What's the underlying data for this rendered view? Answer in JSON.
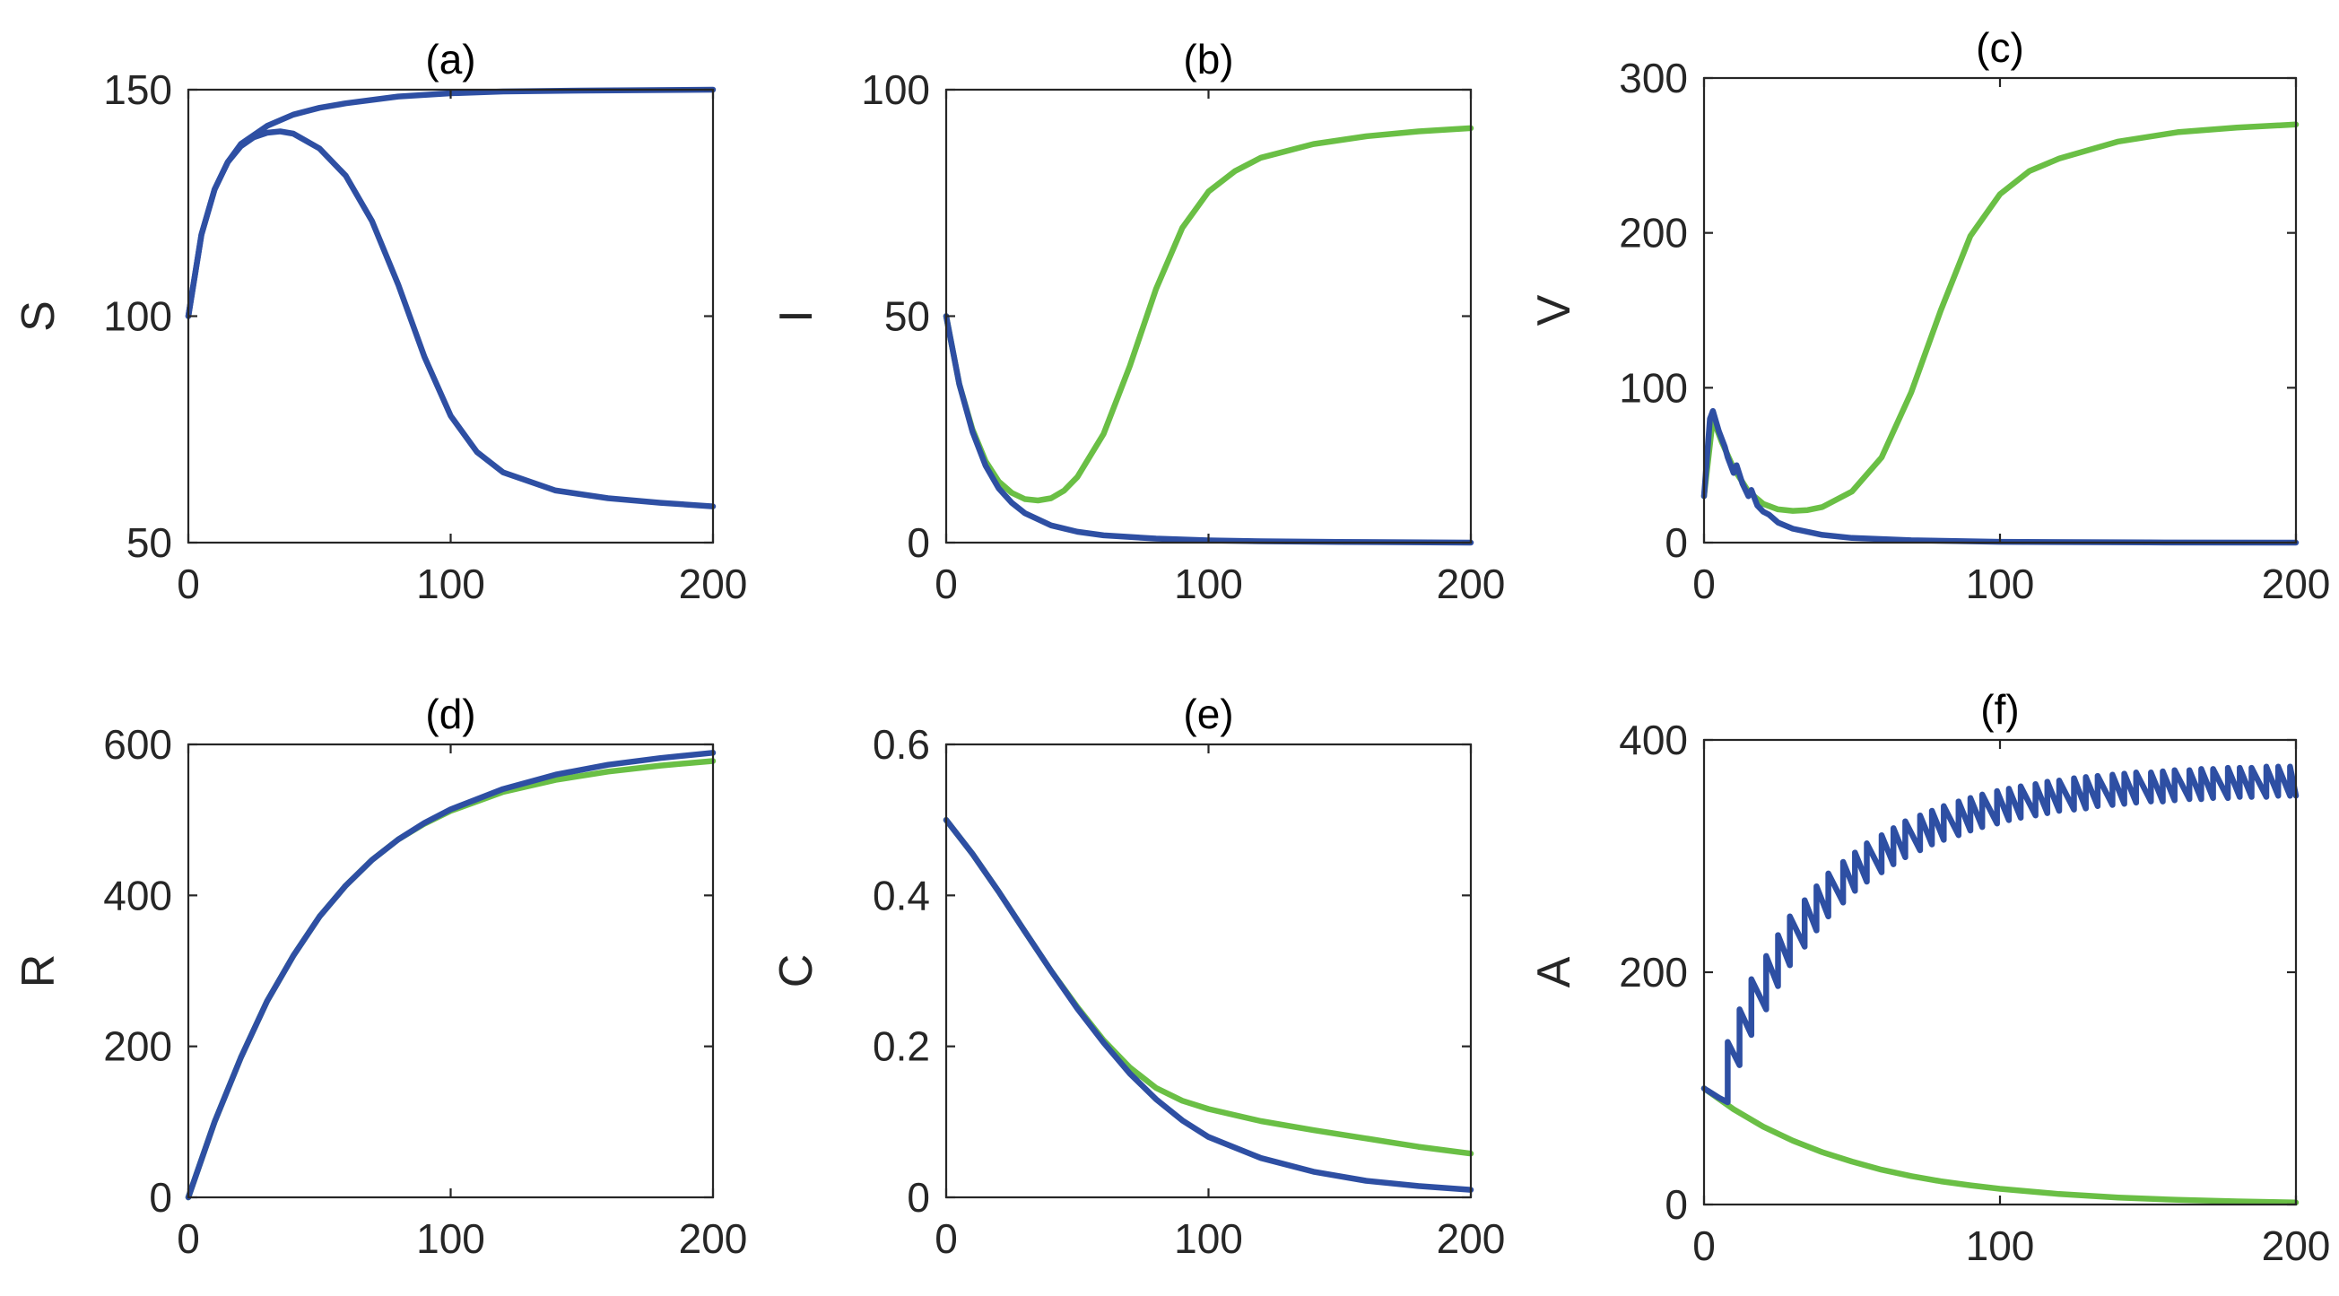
{
  "chart_data": [
    {
      "type": "line",
      "title": "(a)",
      "xlabel": "",
      "ylabel": "S",
      "xlim": [
        0,
        200
      ],
      "ylim": [
        50,
        150
      ],
      "xticks": [
        "0",
        "100",
        "200"
      ],
      "yticks": [
        "50",
        "100",
        "150"
      ],
      "xtick_values": [
        0,
        100,
        200
      ],
      "ytick_values": [
        50,
        100,
        150
      ],
      "series": [
        {
          "name": "blue-upper",
          "color": "#2E4FA3",
          "x": [
            0,
            5,
            10,
            15,
            20,
            30,
            40,
            50,
            60,
            80,
            100,
            120,
            150,
            200
          ],
          "y": [
            100,
            118,
            128,
            134,
            138,
            142,
            144.5,
            146,
            147,
            148.5,
            149.2,
            149.6,
            149.8,
            150
          ]
        },
        {
          "name": "blue-lower",
          "color": "#2E4FA3",
          "x": [
            0,
            5,
            10,
            15,
            20,
            25,
            30,
            35,
            40,
            50,
            60,
            70,
            80,
            90,
            100,
            110,
            120,
            140,
            160,
            180,
            200
          ],
          "y": [
            100,
            118,
            128,
            134,
            137.5,
            139.5,
            140.5,
            140.8,
            140.3,
            137,
            131,
            121,
            107,
            91,
            78,
            70,
            65.5,
            61.5,
            59.8,
            58.8,
            58
          ]
        }
      ]
    },
    {
      "type": "line",
      "title": "(b)",
      "xlabel": "",
      "ylabel": "I",
      "xlim": [
        0,
        200
      ],
      "ylim": [
        0,
        100
      ],
      "xticks": [
        "0",
        "100",
        "200"
      ],
      "yticks": [
        "0",
        "50",
        "100"
      ],
      "xtick_values": [
        0,
        100,
        200
      ],
      "ytick_values": [
        0,
        50,
        100
      ],
      "series": [
        {
          "name": "green",
          "color": "#6ABF45",
          "x": [
            0,
            5,
            10,
            15,
            20,
            25,
            30,
            35,
            40,
            45,
            50,
            60,
            70,
            80,
            90,
            100,
            110,
            120,
            140,
            160,
            180,
            200
          ],
          "y": [
            50,
            35,
            25,
            18,
            13.5,
            11,
            9.6,
            9.3,
            9.8,
            11.5,
            14.5,
            24,
            39,
            56,
            69.5,
            77.5,
            82,
            85,
            88,
            89.7,
            90.8,
            91.5
          ]
        },
        {
          "name": "blue",
          "color": "#2E4FA3",
          "x": [
            0,
            5,
            10,
            15,
            20,
            25,
            30,
            40,
            50,
            60,
            80,
            100,
            120,
            150,
            200
          ],
          "y": [
            50,
            35,
            24.5,
            17,
            12,
            8.8,
            6.5,
            3.8,
            2.4,
            1.6,
            0.9,
            0.5,
            0.3,
            0.15,
            0
          ]
        }
      ]
    },
    {
      "type": "line",
      "title": "(c)",
      "xlabel": "",
      "ylabel": "V",
      "xlim": [
        0,
        200
      ],
      "ylim": [
        0,
        300
      ],
      "xticks": [
        "0",
        "100",
        "200"
      ],
      "yticks": [
        "0",
        "100",
        "200",
        "300"
      ],
      "xtick_values": [
        0,
        100,
        200
      ],
      "ytick_values": [
        0,
        100,
        200,
        300
      ],
      "series": [
        {
          "name": "green",
          "color": "#6ABF45",
          "x": [
            0,
            3,
            6,
            10,
            15,
            20,
            25,
            30,
            35,
            40,
            50,
            60,
            70,
            80,
            90,
            100,
            110,
            120,
            140,
            160,
            180,
            200
          ],
          "y": [
            30,
            80,
            65,
            48,
            33,
            25,
            21.5,
            20.5,
            21,
            23,
            33,
            55,
            97,
            150,
            198,
            225,
            240,
            248,
            259,
            265,
            268,
            270
          ]
        },
        {
          "name": "blue",
          "color": "#2E4FA3",
          "x": [
            0,
            2,
            3,
            5,
            7,
            8,
            10,
            11,
            13,
            15,
            16,
            18,
            20,
            22,
            25,
            30,
            40,
            50,
            70,
            100,
            150,
            200
          ],
          "y": [
            30,
            80,
            85,
            72,
            62,
            55,
            45,
            50,
            38,
            30,
            34,
            24,
            20,
            18,
            13,
            9,
            5,
            3,
            1.5,
            0.5,
            0.1,
            0
          ]
        }
      ]
    },
    {
      "type": "line",
      "title": "(d)",
      "xlabel": "",
      "ylabel": "R",
      "xlim": [
        0,
        200
      ],
      "ylim": [
        0,
        600
      ],
      "xticks": [
        "0",
        "100",
        "200"
      ],
      "yticks": [
        "0",
        "200",
        "400",
        "600"
      ],
      "xtick_values": [
        0,
        100,
        200
      ],
      "ytick_values": [
        0,
        200,
        400,
        600
      ],
      "series": [
        {
          "name": "green",
          "color": "#6ABF45",
          "x": [
            0,
            10,
            20,
            30,
            40,
            50,
            60,
            70,
            80,
            90,
            100,
            120,
            140,
            160,
            180,
            200
          ],
          "y": [
            0,
            100,
            185,
            260,
            320,
            372,
            413,
            447,
            474,
            495,
            512,
            537,
            553,
            564,
            572,
            578
          ]
        },
        {
          "name": "blue",
          "color": "#2E4FA3",
          "x": [
            0,
            10,
            20,
            30,
            40,
            50,
            60,
            70,
            80,
            90,
            100,
            120,
            140,
            160,
            180,
            200
          ],
          "y": [
            0,
            100,
            185,
            260,
            320,
            372,
            413,
            447,
            474,
            496,
            514,
            541,
            560,
            573,
            582,
            589
          ]
        }
      ]
    },
    {
      "type": "line",
      "title": "(e)",
      "xlabel": "",
      "ylabel": "C",
      "xlim": [
        0,
        200
      ],
      "ylim": [
        0,
        0.6
      ],
      "xticks": [
        "0",
        "100",
        "200"
      ],
      "yticks": [
        "0",
        "0.2",
        "0.4",
        "0.6"
      ],
      "xtick_values": [
        0,
        100,
        200
      ],
      "ytick_values": [
        0,
        0.2,
        0.4,
        0.6
      ],
      "series": [
        {
          "name": "green",
          "color": "#6ABF45",
          "x": [
            0,
            10,
            20,
            30,
            40,
            50,
            60,
            70,
            80,
            90,
            100,
            120,
            140,
            160,
            180,
            200
          ],
          "y": [
            0.5,
            0.455,
            0.405,
            0.352,
            0.3,
            0.252,
            0.208,
            0.172,
            0.145,
            0.128,
            0.117,
            0.101,
            0.089,
            0.078,
            0.067,
            0.058
          ]
        },
        {
          "name": "blue",
          "color": "#2E4FA3",
          "x": [
            0,
            10,
            20,
            30,
            40,
            50,
            60,
            70,
            80,
            90,
            100,
            120,
            140,
            160,
            180,
            200
          ],
          "y": [
            0.5,
            0.455,
            0.405,
            0.352,
            0.3,
            0.25,
            0.205,
            0.164,
            0.13,
            0.102,
            0.08,
            0.052,
            0.034,
            0.022,
            0.015,
            0.01
          ]
        }
      ]
    },
    {
      "type": "line",
      "title": "(f)",
      "xlabel": "",
      "ylabel": "A",
      "xlim": [
        0,
        200
      ],
      "ylim": [
        0,
        400
      ],
      "xticks": [
        "0",
        "100",
        "200"
      ],
      "yticks": [
        "0",
        "200",
        "400"
      ],
      "xtick_values": [
        0,
        100,
        200
      ],
      "ytick_values": [
        0,
        200,
        400
      ],
      "series": [
        {
          "name": "green",
          "color": "#6ABF45",
          "x": [
            0,
            10,
            20,
            30,
            40,
            50,
            60,
            70,
            80,
            90,
            100,
            120,
            140,
            160,
            180,
            200
          ],
          "y": [
            100,
            82,
            67,
            55,
            45,
            37,
            30,
            24.5,
            20,
            16.5,
            13.5,
            9,
            6,
            4,
            2.7,
            1.8
          ]
        },
        {
          "name": "blue",
          "color": "#2E4FA3",
          "x": [
            0,
            5,
            8,
            8,
            12,
            12,
            16,
            16,
            21,
            21,
            25,
            25,
            29,
            29,
            34,
            34,
            38,
            38,
            42,
            42,
            47,
            47,
            51,
            51,
            55,
            55,
            60,
            60,
            64,
            64,
            68,
            68,
            73,
            73,
            77,
            77,
            81,
            81,
            86,
            86,
            90,
            90,
            94,
            94,
            99,
            99,
            103,
            103,
            107,
            107,
            112,
            112,
            116,
            116,
            120,
            120,
            125,
            125,
            129,
            129,
            133,
            133,
            138,
            138,
            142,
            142,
            146,
            146,
            151,
            151,
            155,
            155,
            159,
            159,
            164,
            164,
            168,
            168,
            172,
            172,
            177,
            177,
            181,
            181,
            185,
            185,
            190,
            190,
            194,
            194,
            198,
            198,
            200
          ],
          "y": [
            100,
            92,
            88,
            140,
            120,
            168,
            146,
            194,
            168,
            214,
            188,
            232,
            206,
            248,
            222,
            262,
            236,
            274,
            248,
            285,
            260,
            295,
            270,
            303,
            278,
            311,
            286,
            318,
            293,
            324,
            299,
            330,
            305,
            335,
            310,
            339,
            314,
            343,
            318,
            347,
            322,
            350,
            325,
            353,
            328,
            356,
            331,
            358,
            333,
            360,
            335,
            362,
            337,
            364,
            339,
            365,
            340,
            367,
            341,
            368,
            343,
            369,
            344,
            370,
            345,
            371,
            346,
            372,
            347,
            372,
            347,
            373,
            348,
            374,
            349,
            374,
            349,
            375,
            350,
            375,
            350,
            376,
            351,
            376,
            351,
            376,
            351,
            377,
            352,
            377,
            352,
            377,
            352
          ]
        }
      ]
    }
  ]
}
